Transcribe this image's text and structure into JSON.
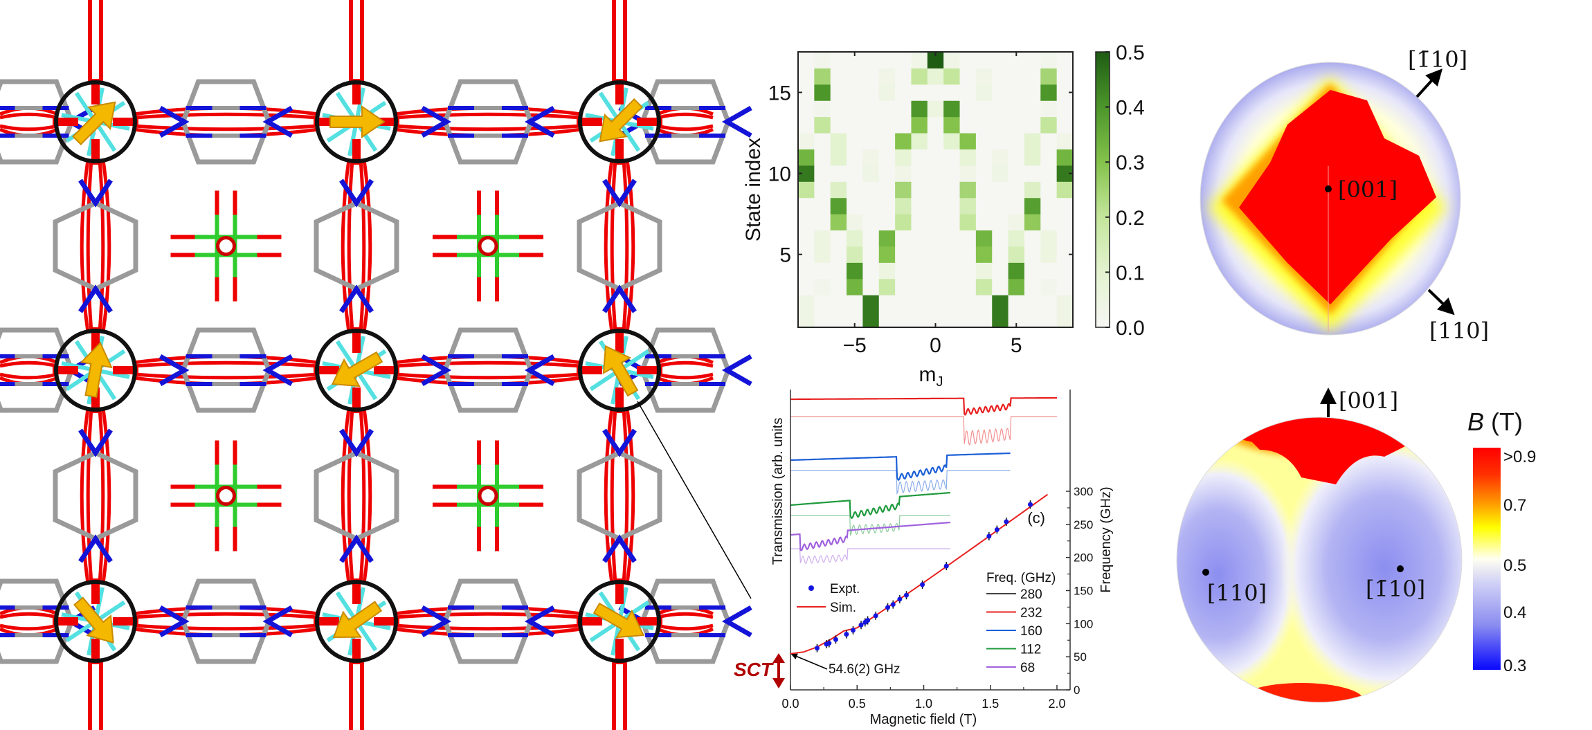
{
  "structure": {
    "spin_markers": 9
  },
  "heatmap": {
    "type": "heatmap",
    "xlabel_main": "m",
    "xlabel_sub": "J",
    "ylabel": "State index",
    "x_values": [
      -8,
      -7,
      -6,
      -5,
      -4,
      -3,
      -2,
      -1,
      0,
      1,
      2,
      3,
      4,
      5,
      6,
      7,
      8
    ],
    "y_values": [
      1,
      2,
      3,
      4,
      5,
      6,
      7,
      8,
      9,
      10,
      11,
      12,
      13,
      14,
      15,
      16,
      17
    ],
    "x_ticks": [
      "−5",
      "0",
      "5"
    ],
    "x_tick_values": [
      -5,
      0,
      5
    ],
    "y_ticks": [
      "5",
      "10",
      "15"
    ],
    "y_tick_values": [
      5,
      10,
      15
    ],
    "colorbar_ticks": [
      "0.0",
      "0.1",
      "0.2",
      "0.3",
      "0.4",
      "0.5"
    ],
    "colorbar_range": [
      0,
      0.5
    ],
    "colormap": [
      "#f6f6f3",
      "#e3f3cf",
      "#c4e69c",
      "#84c24b",
      "#4c962a",
      "#1e5c14"
    ],
    "rows": [
      [
        0.04,
        0,
        0,
        0,
        0.45,
        0,
        0,
        0,
        0,
        0,
        0,
        0,
        0.45,
        0,
        0,
        0,
        0.04
      ],
      [
        0.04,
        0,
        0,
        0,
        0.45,
        0,
        0,
        0,
        0,
        0,
        0,
        0,
        0.45,
        0,
        0,
        0,
        0.04
      ],
      [
        0,
        0.02,
        0,
        0.33,
        0,
        0.18,
        0,
        0,
        0,
        0,
        0,
        0.18,
        0,
        0.33,
        0,
        0.02,
        0
      ],
      [
        0,
        0,
        0,
        0.4,
        0,
        0.05,
        0,
        0,
        0,
        0,
        0,
        0.05,
        0,
        0.4,
        0,
        0,
        0
      ],
      [
        0,
        0.05,
        0,
        0.15,
        0,
        0.3,
        0,
        0,
        0,
        0,
        0,
        0.3,
        0,
        0.15,
        0,
        0.05,
        0
      ],
      [
        0,
        0.05,
        0,
        0.1,
        0,
        0.33,
        0,
        0,
        0,
        0,
        0,
        0.33,
        0,
        0.1,
        0,
        0.05,
        0
      ],
      [
        0,
        0,
        0.28,
        0.03,
        0,
        0,
        0.2,
        0,
        0,
        0,
        0.2,
        0,
        0,
        0.03,
        0.28,
        0,
        0
      ],
      [
        0,
        0,
        0.38,
        0,
        0,
        0,
        0.15,
        0,
        0,
        0,
        0.15,
        0,
        0,
        0,
        0.38,
        0,
        0
      ],
      [
        0.2,
        0,
        0.12,
        0,
        0,
        0,
        0.25,
        0,
        0,
        0,
        0.25,
        0,
        0,
        0,
        0.12,
        0,
        0.2
      ],
      [
        0.45,
        0,
        0,
        0,
        0.04,
        0,
        0.03,
        0,
        0,
        0,
        0.03,
        0,
        0.04,
        0,
        0,
        0,
        0.45
      ],
      [
        0.33,
        0,
        0.1,
        0,
        0.03,
        0,
        0.08,
        0,
        0,
        0,
        0.08,
        0,
        0.03,
        0,
        0.1,
        0,
        0.33
      ],
      [
        0.03,
        0,
        0.1,
        0,
        0,
        0,
        0.3,
        0.1,
        0,
        0.1,
        0.3,
        0,
        0,
        0,
        0.1,
        0,
        0.03
      ],
      [
        0,
        0.2,
        0,
        0,
        0,
        0,
        0,
        0.3,
        0,
        0.3,
        0,
        0,
        0,
        0,
        0,
        0.2,
        0
      ],
      [
        0,
        0.02,
        0,
        0,
        0,
        0,
        0,
        0.4,
        0.05,
        0.4,
        0,
        0,
        0,
        0,
        0,
        0.02,
        0
      ],
      [
        0,
        0.4,
        0,
        0,
        0,
        0.04,
        0,
        0,
        0,
        0,
        0,
        0.04,
        0,
        0,
        0,
        0.4,
        0
      ],
      [
        0,
        0.25,
        0,
        0,
        0,
        0.03,
        0,
        0.2,
        0.08,
        0.2,
        0,
        0.03,
        0,
        0,
        0,
        0.25,
        0
      ],
      [
        0,
        0.02,
        0,
        0,
        0,
        0,
        0,
        0.03,
        0.5,
        0.03,
        0,
        0,
        0,
        0,
        0,
        0.02,
        0
      ]
    ]
  },
  "chart_data": [
    {
      "type": "scatter",
      "xlabel": "Magnetic field (T)",
      "ylabel_right": "Frequency (GHz)",
      "ylabel_left": "Transmission (arb. units",
      "panel_label": "(c)",
      "xlim": [
        0,
        2.1
      ],
      "ylim": [
        0,
        300
      ],
      "x_ticks": [
        "0.0",
        "0.5",
        "1.0",
        "1.5",
        "2.0"
      ],
      "x_tick_values": [
        0,
        0.5,
        1.0,
        1.5,
        2.0
      ],
      "y_ticks": [
        "0",
        "50",
        "100",
        "150",
        "200",
        "250",
        "300"
      ],
      "y_tick_values": [
        0,
        50,
        100,
        150,
        200,
        250,
        300
      ],
      "annotation": "54.6(2) GHz",
      "annotation_value": 54.6,
      "side_label": "SCT",
      "series": [
        {
          "name": "Expt.",
          "color": "#1515e0",
          "x": [
            0.2,
            0.27,
            0.29,
            0.34,
            0.42,
            0.47,
            0.53,
            0.56,
            0.58,
            0.64,
            0.73,
            0.77,
            0.82,
            0.87,
            0.99,
            1.17,
            1.49,
            1.55,
            1.62,
            1.8
          ],
          "y": [
            63,
            69,
            70.5,
            76,
            84,
            90,
            98,
            102,
            105,
            112,
            124.5,
            129,
            137,
            143,
            159,
            187,
            232,
            242,
            254,
            280
          ]
        },
        {
          "name": "Sim.",
          "color": "#e82020",
          "x": [
            0,
            0.1,
            0.2,
            0.3,
            0.4,
            0.5,
            0.6,
            0.7,
            0.8,
            0.9,
            1.0,
            1.1,
            1.2,
            1.3,
            1.4,
            1.5,
            1.6,
            1.7,
            1.8,
            1.93
          ],
          "y": [
            54.6,
            57.3,
            64.8,
            75.9,
            89.0,
            93.8,
            107.1,
            120.6,
            134.4,
            148.3,
            162.2,
            176.3,
            190.5,
            204.8,
            219.0,
            233.4,
            247.7,
            262.1,
            276.5,
            295.2
          ]
        }
      ],
      "legend_title": "Freq. (GHz)",
      "spectra": [
        {
          "label": "280",
          "color": "#444444"
        },
        {
          "label": "232",
          "color": "#e82020"
        },
        {
          "label": "160",
          "color": "#1a5fd6"
        },
        {
          "label": "112",
          "color": "#1e9a3c"
        },
        {
          "label": "68",
          "color": "#a061dd"
        }
      ]
    }
  ],
  "stereo_top": {
    "center_label": "[001]",
    "arrow_up_label": "[1̄10]",
    "arrow_down_label": "[110]"
  },
  "stereo_bottom": {
    "arrow_label": "[001]",
    "left_point_label": "[110]",
    "right_point_label": "[1̄10]",
    "colorbar_title_symbol": "B",
    "colorbar_title_unit": "(T)",
    "colorbar_ticks": [
      ">0.9",
      "0.7",
      "0.5",
      "0.4",
      "0.3"
    ],
    "colorbar_tick_values": [
      0.9,
      0.7,
      0.5,
      0.4,
      0.3
    ],
    "colorbar_colors": [
      "#ff0000",
      "#ff8a00",
      "#ffff00",
      "#ffffe8",
      "#c8c8f4",
      "#8c8ef0",
      "#0a0aff"
    ]
  }
}
